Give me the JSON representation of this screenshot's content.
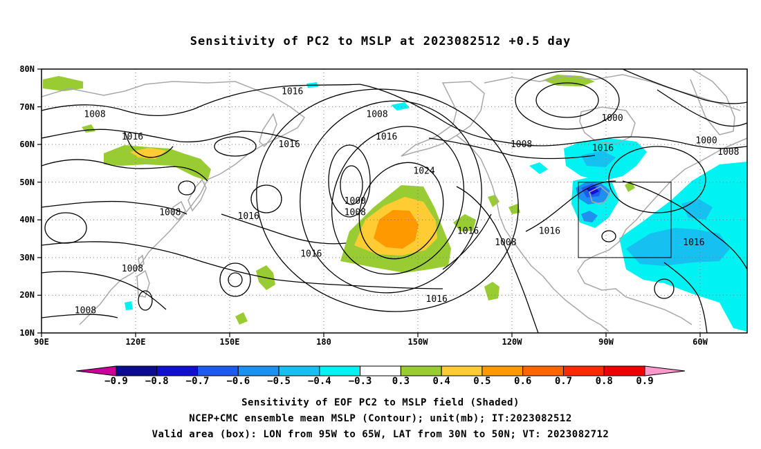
{
  "title": "Sensitivity of PC2 to MSLP at 2023082512 +0.5 day",
  "map": {
    "lat_ticks": [
      "80N",
      "70N",
      "60N",
      "50N",
      "40N",
      "30N",
      "20N",
      "10N"
    ],
    "lon_ticks": [
      "90E",
      "120E",
      "150E",
      "180",
      "150W",
      "120W",
      "90W",
      "60W"
    ],
    "lon_range_deg_east": [
      90,
      315
    ],
    "lat_range_deg": [
      10,
      80
    ],
    "valid_box": {
      "lon_deg_east": [
        265,
        295
      ],
      "lat_deg": [
        30,
        50
      ]
    },
    "contour_labels": [
      {
        "text": "1016",
        "lon": 170,
        "lat": 74
      },
      {
        "text": "1008",
        "lon": 107,
        "lat": 68
      },
      {
        "text": "1016",
        "lon": 119,
        "lat": 62
      },
      {
        "text": "1008",
        "lon": 197,
        "lat": 68
      },
      {
        "text": "1016",
        "lon": 200,
        "lat": 62
      },
      {
        "text": "1016",
        "lon": 169,
        "lat": 60
      },
      {
        "text": "1024",
        "lon": 212,
        "lat": 53
      },
      {
        "text": "1008",
        "lon": 243,
        "lat": 60
      },
      {
        "text": "1000",
        "lon": 272,
        "lat": 67
      },
      {
        "text": "1000",
        "lon": 302,
        "lat": 61
      },
      {
        "text": "1008",
        "lon": 309,
        "lat": 58
      },
      {
        "text": "1016",
        "lon": 269,
        "lat": 59
      },
      {
        "text": "1008",
        "lon": 131,
        "lat": 42
      },
      {
        "text": "1016",
        "lon": 156,
        "lat": 41
      },
      {
        "text": "1000",
        "lon": 190,
        "lat": 45
      },
      {
        "text": "1008",
        "lon": 190,
        "lat": 42
      },
      {
        "text": "1016",
        "lon": 226,
        "lat": 37
      },
      {
        "text": "1008",
        "lon": 238,
        "lat": 34
      },
      {
        "text": "1016",
        "lon": 252,
        "lat": 37
      },
      {
        "text": "1016",
        "lon": 298,
        "lat": 34
      },
      {
        "text": "1016",
        "lon": 176,
        "lat": 31
      },
      {
        "text": "1016",
        "lon": 216,
        "lat": 19
      },
      {
        "text": "1008",
        "lon": 119,
        "lat": 27
      },
      {
        "text": "1008",
        "lon": 104,
        "lat": 16
      }
    ]
  },
  "colorbar": {
    "labels": [
      "-0.9",
      "-0.8",
      "-0.7",
      "-0.6",
      "-0.5",
      "-0.4",
      "-0.3",
      "0.3",
      "0.4",
      "0.5",
      "0.6",
      "0.7",
      "0.8",
      "0.9"
    ],
    "colors": [
      "#0b0b8f",
      "#1010d0",
      "#1e5cf0",
      "#1e90f0",
      "#16c0f0",
      "#00f2f2",
      "#ffffff",
      "#99cc33",
      "#ffcc33",
      "#ff9900",
      "#ff6600",
      "#ff2a00",
      "#ee0000"
    ],
    "low_end_color": "#cc0099",
    "high_end_color": "#ff99cc"
  },
  "captions": [
    "Sensitivity of EOF PC2 to MSLP field (Shaded)",
    "NCEP+CMC ensemble mean MSLP (Contour); unit(mb); IT:2023082512",
    "Valid area (box): LON from 95W to 65W, LAT from 30N to 50N; VT: 2023082712"
  ]
}
